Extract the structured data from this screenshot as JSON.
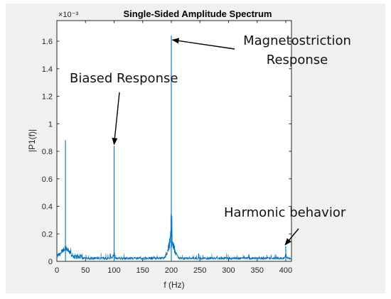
{
  "chart_data": {
    "type": "line",
    "title": "Single-Sided Amplitude Spectrum",
    "xlabel": "f (Hz)",
    "ylabel": "|P1(f)|",
    "y_exponent_label": "×10⁻³",
    "xlim": [
      0,
      410
    ],
    "ylim": [
      0,
      1.75
    ],
    "xticks": [
      0,
      50,
      100,
      150,
      200,
      250,
      300,
      350,
      400
    ],
    "yticks": [
      0,
      0.2,
      0.4,
      0.6,
      0.8,
      1,
      1.2,
      1.4,
      1.6
    ],
    "ytick_labels": [
      "0",
      "0.2",
      "0.4",
      "0.6",
      "0.8",
      "1",
      "1.2",
      "1.4",
      "1.6"
    ],
    "grid": false,
    "line_color": "#0072BD",
    "peaks": [
      {
        "x": 15,
        "y": 0.88
      },
      {
        "x": 100,
        "y": 0.84
      },
      {
        "x": 200,
        "y": 1.64
      },
      {
        "x": 400,
        "y": 0.11
      }
    ],
    "annotations": [
      {
        "id": "magnetostriction",
        "lines": [
          "Magnetostriction",
          "Response"
        ],
        "target": {
          "x": 202,
          "y": 1.61
        }
      },
      {
        "id": "biased",
        "lines": [
          "Biased Response"
        ],
        "target": {
          "x": 100,
          "y": 0.85
        }
      },
      {
        "id": "harmonic",
        "lines": [
          "Harmonic behavior"
        ],
        "target": {
          "x": 399,
          "y": 0.12
        }
      }
    ]
  }
}
